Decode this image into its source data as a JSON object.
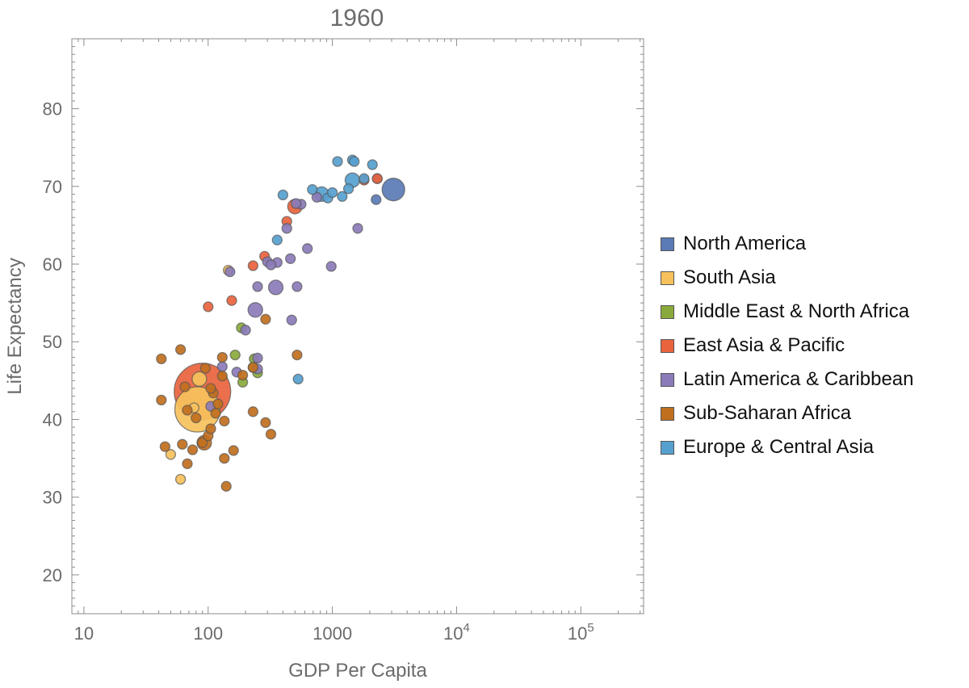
{
  "chart_data": {
    "type": "scatter",
    "title": "1960",
    "xlabel": "GDP Per Capita",
    "ylabel": "Life Expectancy",
    "x_scale": "log",
    "xlim": [
      8,
      320000
    ],
    "ylim": [
      15,
      89
    ],
    "x_ticks": [
      {
        "value": 10,
        "base": "10",
        "exp": ""
      },
      {
        "value": 100,
        "base": "100",
        "exp": ""
      },
      {
        "value": 1000,
        "base": "1000",
        "exp": ""
      },
      {
        "value": 10000,
        "base": "10",
        "exp": "4"
      },
      {
        "value": 100000,
        "base": "10",
        "exp": "5"
      }
    ],
    "y_ticks": [
      20,
      30,
      40,
      50,
      60,
      70,
      80
    ],
    "grid": false,
    "legend_position": "right",
    "series": [
      {
        "name": "North America",
        "color": "#5a7bb5",
        "points": [
          [
            3100,
            69.6,
            3
          ],
          [
            2300,
            71.0,
            1
          ],
          [
            2250,
            68.3,
            1
          ]
        ]
      },
      {
        "name": "South Asia",
        "color": "#f6c15c",
        "points": [
          [
            82,
            41.3,
            5
          ],
          [
            85,
            45.2,
            2
          ],
          [
            145,
            59.2,
            1
          ],
          [
            50,
            35.5,
            1
          ],
          [
            60,
            32.3,
            1
          ],
          [
            77,
            41.5,
            1
          ]
        ]
      },
      {
        "name": "Middle East & North Africa",
        "color": "#8aa93b",
        "points": [
          [
            165,
            48.3,
            1
          ],
          [
            235,
            47.8,
            1
          ],
          [
            250,
            46.0,
            1
          ],
          [
            190,
            44.8,
            1
          ],
          [
            185,
            51.8,
            1
          ],
          [
            230,
            46.7,
            1
          ]
        ]
      },
      {
        "name": "East Asia & Pacific",
        "color": "#e9633d",
        "points": [
          [
            90,
            43.6,
            6
          ],
          [
            500,
            67.4,
            2
          ],
          [
            285,
            61.0,
            1
          ],
          [
            155,
            55.3,
            1
          ],
          [
            100,
            54.5,
            1
          ],
          [
            230,
            59.8,
            1
          ],
          [
            430,
            65.5,
            1
          ],
          [
            2300,
            71.0,
            1
          ],
          [
            1800,
            70.8,
            1
          ]
        ]
      },
      {
        "name": "Latin America & Caribbean",
        "color": "#8b7bb8",
        "points": [
          [
            240,
            54.1,
            2
          ],
          [
            350,
            57.0,
            2
          ],
          [
            250,
            57.1,
            1
          ],
          [
            520,
            57.1,
            1
          ],
          [
            980,
            59.7,
            1
          ],
          [
            300,
            60.3,
            1
          ],
          [
            360,
            60.2,
            1
          ],
          [
            460,
            60.7,
            1
          ],
          [
            470,
            52.8,
            1
          ],
          [
            630,
            62.0,
            1
          ],
          [
            430,
            64.6,
            1
          ],
          [
            560,
            67.7,
            1
          ],
          [
            750,
            68.6,
            1
          ],
          [
            1600,
            64.6,
            1
          ],
          [
            250,
            47.9,
            1
          ],
          [
            130,
            46.8,
            1
          ],
          [
            170,
            46.1,
            1
          ],
          [
            200,
            51.5,
            1
          ],
          [
            105,
            41.7,
            1
          ],
          [
            150,
            59.0,
            1
          ],
          [
            320,
            59.9,
            1
          ],
          [
            510,
            67.8,
            1
          ],
          [
            250,
            46.5,
            1
          ]
        ]
      },
      {
        "name": "Sub-Saharan Africa",
        "color": "#c06f1e",
        "points": [
          [
            93,
            37.0,
            2
          ],
          [
            520,
            48.3,
            1
          ],
          [
            230,
            41.0,
            1
          ],
          [
            130,
            48.0,
            1
          ],
          [
            95,
            46.6,
            1
          ],
          [
            75,
            36.1,
            1
          ],
          [
            120,
            42.0,
            1
          ],
          [
            110,
            43.4,
            1
          ],
          [
            135,
            39.8,
            1
          ],
          [
            65,
            44.2,
            1
          ],
          [
            45,
            36.5,
            1
          ],
          [
            42,
            42.5,
            1
          ],
          [
            68,
            34.3,
            1
          ],
          [
            90,
            37.0,
            1
          ],
          [
            100,
            37.9,
            1
          ],
          [
            135,
            35.0,
            1
          ],
          [
            160,
            36.0,
            1
          ],
          [
            140,
            31.4,
            1
          ],
          [
            320,
            38.1,
            1
          ],
          [
            290,
            52.9,
            1
          ],
          [
            190,
            45.7,
            1
          ],
          [
            230,
            46.7,
            1
          ],
          [
            105,
            38.8,
            1
          ],
          [
            80,
            40.2,
            1
          ],
          [
            68,
            41.2,
            1
          ],
          [
            62,
            36.8,
            1
          ],
          [
            42,
            47.8,
            1
          ],
          [
            60,
            49.0,
            1
          ],
          [
            130,
            45.6,
            1
          ],
          [
            290,
            39.6,
            1
          ],
          [
            115,
            40.8,
            1
          ],
          [
            105,
            44.0,
            1
          ]
        ]
      },
      {
        "name": "Europe & Central Asia",
        "color": "#56a0cf",
        "points": [
          [
            1450,
            70.8,
            2
          ],
          [
            400,
            68.9,
            1
          ],
          [
            820,
            69.0,
            2
          ],
          [
            1350,
            69.7,
            1
          ],
          [
            1100,
            73.2,
            1
          ],
          [
            1450,
            73.4,
            1
          ],
          [
            2100,
            72.8,
            1
          ],
          [
            530,
            45.2,
            1
          ],
          [
            360,
            63.1,
            1
          ],
          [
            920,
            68.5,
            1
          ],
          [
            1200,
            68.7,
            1
          ],
          [
            690,
            69.6,
            1
          ],
          [
            1800,
            71.0,
            1
          ],
          [
            1000,
            69.2,
            1
          ],
          [
            1500,
            73.2,
            1
          ]
        ]
      }
    ]
  }
}
